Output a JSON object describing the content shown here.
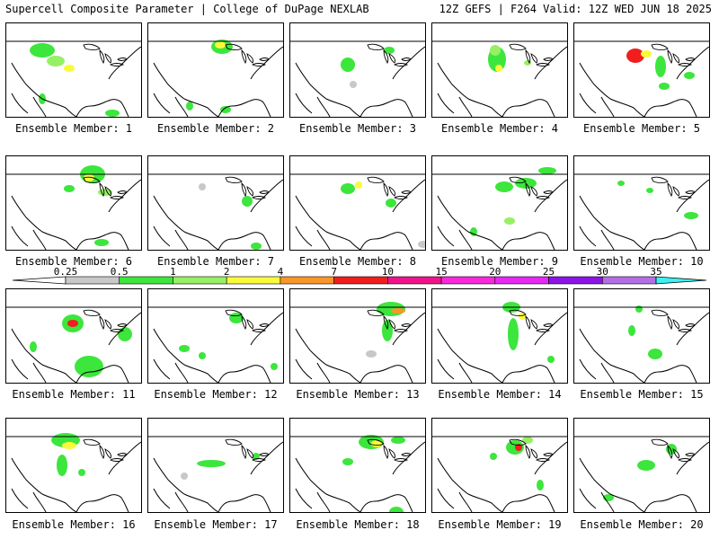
{
  "header": {
    "title": "Supercell Composite Parameter | College of DuPage NEXLAB",
    "run_info": "12Z GEFS | F264 Valid: 12Z WED JUN 18 2025"
  },
  "panels": [
    {
      "label": "Ensemble Member: 1"
    },
    {
      "label": "Ensemble Member: 2"
    },
    {
      "label": "Ensemble Member: 3"
    },
    {
      "label": "Ensemble Member: 4"
    },
    {
      "label": "Ensemble Member: 5"
    },
    {
      "label": "Ensemble Member: 6"
    },
    {
      "label": "Ensemble Member: 7"
    },
    {
      "label": "Ensemble Member: 8"
    },
    {
      "label": "Ensemble Member: 9"
    },
    {
      "label": "Ensemble Member: 10"
    },
    {
      "label": "Ensemble Member: 11"
    },
    {
      "label": "Ensemble Member: 12"
    },
    {
      "label": "Ensemble Member: 13"
    },
    {
      "label": "Ensemble Member: 14"
    },
    {
      "label": "Ensemble Member: 15"
    },
    {
      "label": "Ensemble Member: 16"
    },
    {
      "label": "Ensemble Member: 17"
    },
    {
      "label": "Ensemble Member: 18"
    },
    {
      "label": "Ensemble Member: 19"
    },
    {
      "label": "Ensemble Member: 20"
    }
  ],
  "colorbar": {
    "ticks": [
      "0.25",
      "0.5",
      "1",
      "2",
      "4",
      "7",
      "10",
      "15",
      "20",
      "25",
      "30",
      "35"
    ],
    "colors": [
      "#c8c8c8",
      "#3ce63c",
      "#96f064",
      "#fafa3c",
      "#fa9628",
      "#f01e1e",
      "#f0148c",
      "#fa28dc",
      "#e628f5",
      "#8c14e6",
      "#b46ee6",
      "#3cf0f0"
    ]
  }
}
